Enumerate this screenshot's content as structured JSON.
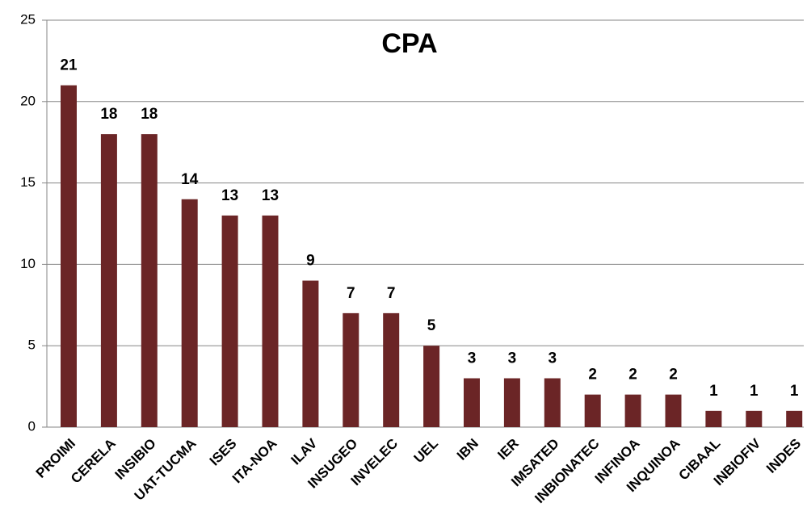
{
  "chart_data": {
    "type": "bar",
    "title": "CPA",
    "categories": [
      "PROIMI",
      "CERELA",
      "INSIBIO",
      "UAT-TUCMA",
      "ISES",
      "ITA-NOA",
      "ILAV",
      "INSUGEO",
      "INVELEC",
      "UEL",
      "IBN",
      "IER",
      "IMSATED",
      "INBIONATEC",
      "INFINOA",
      "INQUINOA",
      "CIBAAL",
      "INBIOFIV",
      "INDES"
    ],
    "values": [
      21,
      18,
      18,
      14,
      13,
      13,
      9,
      7,
      7,
      5,
      3,
      3,
      3,
      2,
      2,
      2,
      1,
      1,
      1
    ],
    "color": "#6b2526",
    "ylim": [
      0,
      25
    ],
    "yticks": [
      0,
      5,
      10,
      15,
      20,
      25
    ],
    "grid": true,
    "data_labels": true
  }
}
